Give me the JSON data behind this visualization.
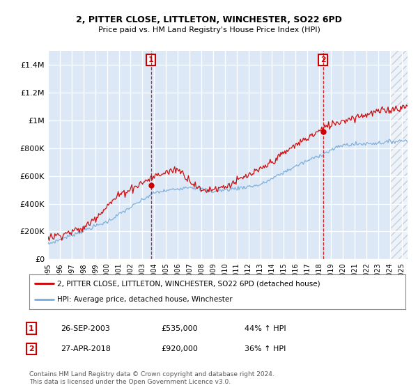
{
  "title": "2, PITTER CLOSE, LITTLETON, WINCHESTER, SO22 6PD",
  "subtitle": "Price paid vs. HM Land Registry's House Price Index (HPI)",
  "legend_line1": "2, PITTER CLOSE, LITTLETON, WINCHESTER, SO22 6PD (detached house)",
  "legend_line2": "HPI: Average price, detached house, Winchester",
  "annotation1_date": "26-SEP-2003",
  "annotation1_price": "£535,000",
  "annotation1_hpi": "44% ↑ HPI",
  "annotation2_date": "27-APR-2018",
  "annotation2_price": "£920,000",
  "annotation2_hpi": "36% ↑ HPI",
  "footer": "Contains HM Land Registry data © Crown copyright and database right 2024.\nThis data is licensed under the Open Government Licence v3.0.",
  "red_color": "#cc0000",
  "blue_color": "#7aaddc",
  "vline_color": "#cc0000",
  "background_color": "#dce8f5",
  "grid_color": "#ffffff",
  "ylim": [
    0,
    1500000
  ],
  "yticks": [
    0,
    200000,
    400000,
    600000,
    800000,
    1000000,
    1200000,
    1400000
  ],
  "ytick_labels": [
    "£0",
    "£200K",
    "£400K",
    "£600K",
    "£800K",
    "£1M",
    "£1.2M",
    "£1.4M"
  ],
  "sale1_year": 2003.73,
  "sale1_price": 535000,
  "sale2_year": 2018.32,
  "sale2_price": 920000,
  "xmin": 1995,
  "xmax": 2025.5
}
